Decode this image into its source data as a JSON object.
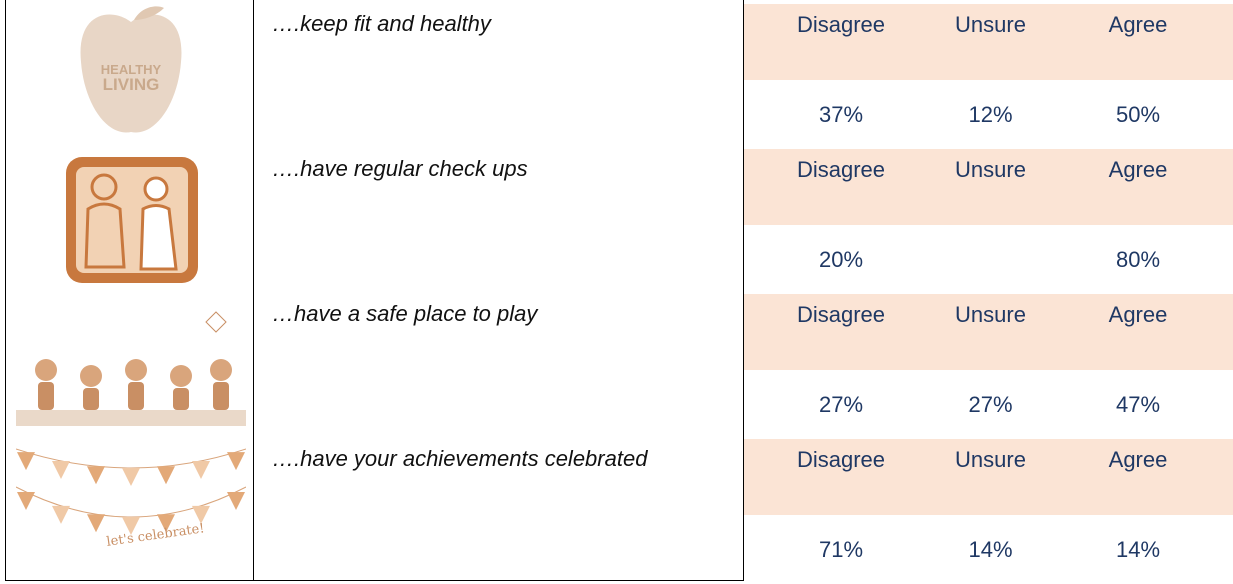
{
  "table": {
    "rows": [
      {
        "statement": "….keep fit and healthy",
        "image_text": [
          "HEALTHY",
          "LIVING"
        ],
        "headers": [
          "Disagree",
          "Unsure",
          "Agree"
        ],
        "values": [
          "37%",
          "12%",
          "50%"
        ]
      },
      {
        "statement": "….have regular check ups",
        "headers": [
          "Disagree",
          "Unsure",
          "Agree"
        ],
        "values": [
          "20%",
          null,
          "80%"
        ]
      },
      {
        "statement": "…have a safe place to play",
        "headers": [
          "Disagree",
          "Unsure",
          "Agree"
        ],
        "values": [
          "27%",
          "27%",
          "47%"
        ]
      },
      {
        "statement": "….have your achievements celebrated",
        "image_text": [
          "let's celebrate!"
        ],
        "headers": [
          "Disagree",
          "Unsure",
          "Agree"
        ],
        "values": [
          "71%",
          "14%",
          "14%"
        ]
      }
    ]
  }
}
